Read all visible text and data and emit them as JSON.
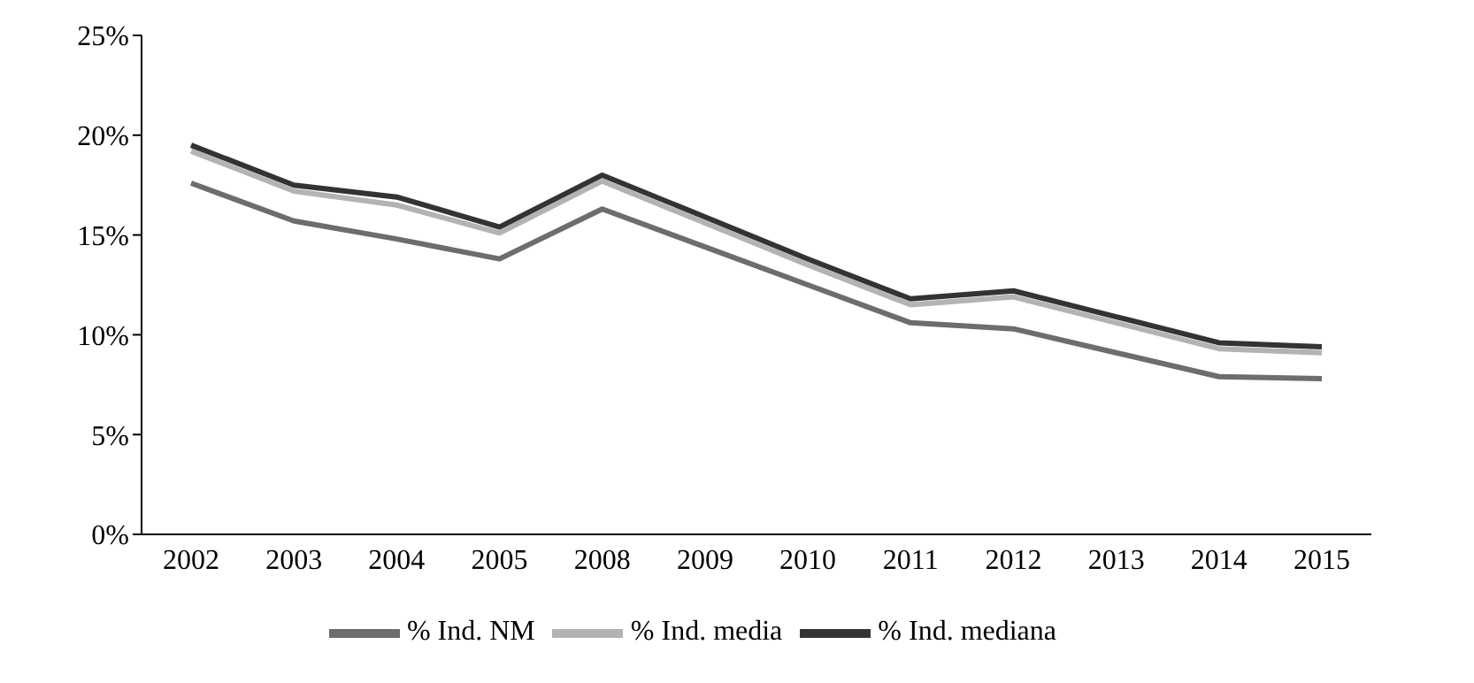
{
  "chart_data": {
    "type": "line",
    "categories": [
      "2002",
      "2003",
      "2004",
      "2005",
      "2008",
      "2009",
      "2010",
      "2011",
      "2012",
      "2013",
      "2014",
      "2015"
    ],
    "series": [
      {
        "name": "% Ind. NM",
        "color": "#6d6d6d",
        "values": [
          17.6,
          15.7,
          14.8,
          13.8,
          16.3,
          14.4,
          12.5,
          10.6,
          10.3,
          9.1,
          7.9,
          7.8
        ]
      },
      {
        "name": "% Ind. media",
        "color": "#b3b3b3",
        "values": [
          19.2,
          17.2,
          16.5,
          15.1,
          17.7,
          15.6,
          13.5,
          11.5,
          11.9,
          10.6,
          9.3,
          9.1
        ]
      },
      {
        "name": "% Ind. mediana",
        "color": "#333333",
        "values": [
          19.5,
          17.5,
          16.9,
          15.4,
          18.0,
          15.9,
          13.8,
          11.8,
          12.2,
          10.9,
          9.6,
          9.4
        ]
      }
    ],
    "ylim": [
      0,
      25
    ],
    "yticks": [
      {
        "value": 0,
        "label": "0%"
      },
      {
        "value": 5,
        "label": "5%"
      },
      {
        "value": 10,
        "label": "10%"
      },
      {
        "value": 15,
        "label": "15%"
      },
      {
        "value": 20,
        "label": "20%"
      },
      {
        "value": 25,
        "label": "25%"
      }
    ],
    "grid": false,
    "legend": "bottom",
    "marker": "none",
    "line_style": "solid"
  }
}
